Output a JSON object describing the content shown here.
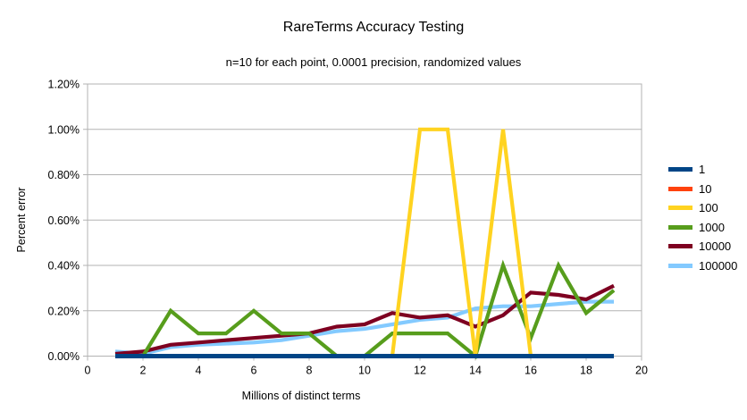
{
  "chart_data": {
    "type": "line",
    "title": "RareTerms Accuracy Testing",
    "subtitle": "n=10 for each point, 0.0001 precision, randomized values",
    "xlabel": "Millions of distinct terms",
    "ylabel": "Percent error",
    "xlim": [
      0,
      20
    ],
    "ylim_percent": [
      0,
      1.2
    ],
    "x_ticks": [
      "0",
      "2",
      "4",
      "6",
      "8",
      "10",
      "12",
      "14",
      "16",
      "18",
      "20"
    ],
    "y_ticks": [
      "0.00%",
      "0.20%",
      "0.40%",
      "0.60%",
      "0.80%",
      "1.00%",
      "1.20%"
    ],
    "grid": true,
    "legend_position": "right",
    "axis_color": "#b3b3b3",
    "x": [
      1,
      2,
      3,
      4,
      5,
      6,
      7,
      8,
      9,
      10,
      11,
      12,
      13,
      14,
      15,
      16,
      17,
      18,
      19
    ],
    "series": [
      {
        "name": "1",
        "color": "#004586",
        "values_percent": [
          0,
          0,
          0,
          0,
          0,
          0,
          0,
          0,
          0,
          0,
          0,
          0,
          0,
          0,
          0,
          0,
          0,
          0,
          0
        ]
      },
      {
        "name": "10",
        "color": "#FF420E",
        "values_percent": [
          0,
          0,
          0,
          0,
          0,
          0,
          0,
          0,
          0,
          0,
          0,
          0,
          0,
          0,
          0,
          0,
          0,
          0,
          0
        ]
      },
      {
        "name": "100",
        "color": "#FFD320",
        "values_percent": [
          0,
          0,
          0,
          0,
          0,
          0,
          0,
          0,
          0,
          0,
          0,
          1.0,
          1.0,
          0,
          1.0,
          0,
          0,
          0,
          0
        ]
      },
      {
        "name": "1000",
        "color": "#579D1C",
        "values_percent": [
          0,
          0,
          0.2,
          0.1,
          0.1,
          0.2,
          0.1,
          0.1,
          0,
          0,
          0.1,
          0.1,
          0.1,
          0,
          0.4,
          0.08,
          0.4,
          0.19,
          0.29
        ]
      },
      {
        "name": "10000",
        "color": "#7E0021",
        "values_percent": [
          0.01,
          0.02,
          0.05,
          0.06,
          0.07,
          0.08,
          0.09,
          0.1,
          0.13,
          0.14,
          0.19,
          0.17,
          0.18,
          0.13,
          0.18,
          0.28,
          0.27,
          0.25,
          0.31
        ]
      },
      {
        "name": "100000",
        "color": "#83CAFF",
        "values_percent": [
          0.02,
          0.01,
          0.04,
          0.05,
          0.055,
          0.06,
          0.07,
          0.09,
          0.11,
          0.12,
          0.14,
          0.16,
          0.17,
          0.21,
          0.22,
          0.22,
          0.23,
          0.24,
          0.24
        ]
      }
    ]
  }
}
